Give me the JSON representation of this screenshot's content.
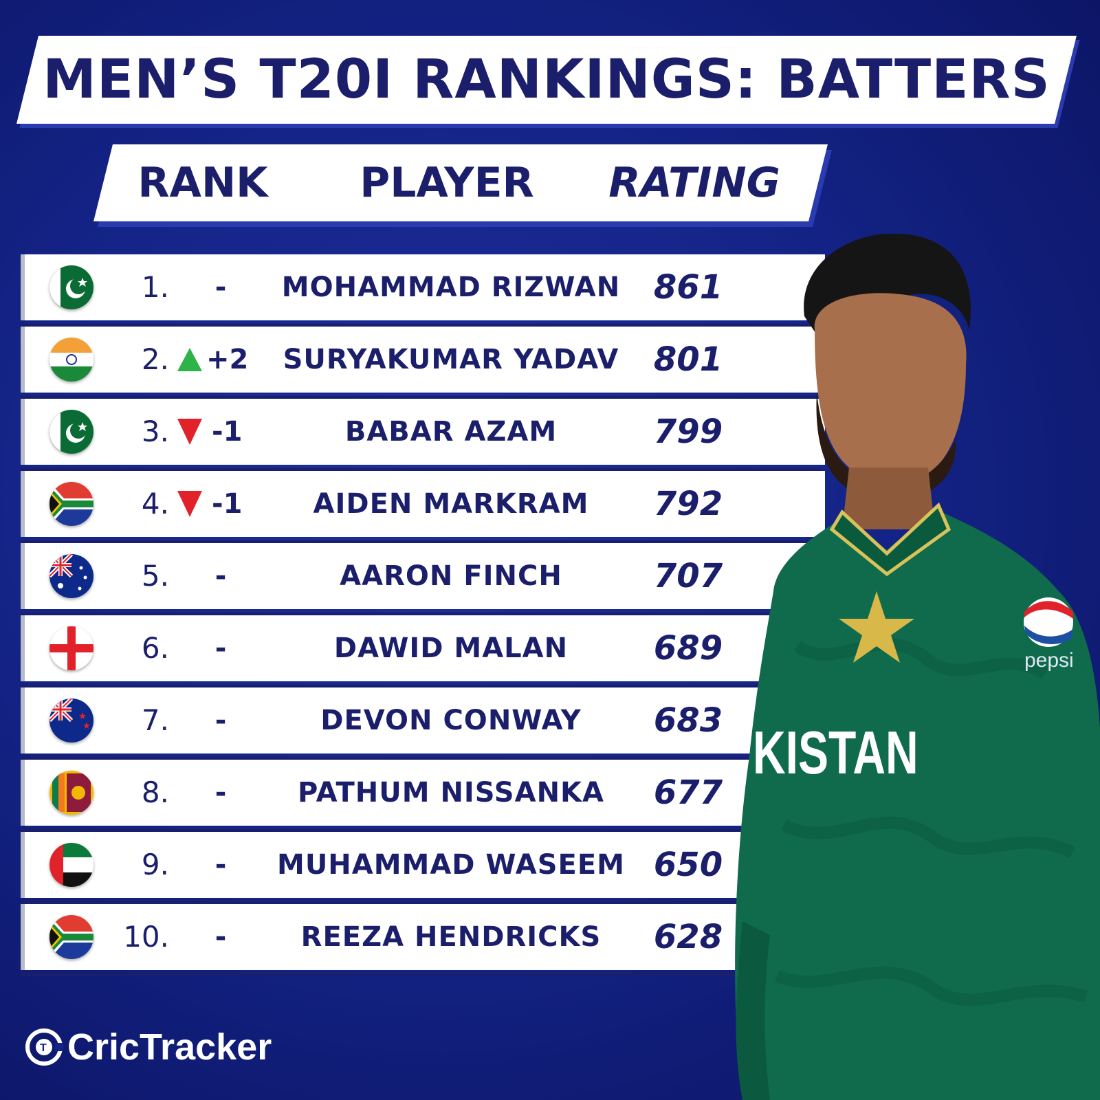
{
  "title": "MEN’S T20I RANKINGS: BATTERS",
  "header": {
    "rank": "RANK",
    "player": "PLAYER",
    "rating": "RATING"
  },
  "rows": [
    {
      "rank": "1.",
      "move": "-",
      "dir": "none",
      "player": "MOHAMMAD RIZWAN",
      "rating": "861",
      "flag": "pakistan-flag-icon"
    },
    {
      "rank": "2.",
      "move": "+2",
      "dir": "up",
      "player": "SURYAKUMAR YADAV",
      "rating": "801",
      "flag": "india-flag-icon"
    },
    {
      "rank": "3.",
      "move": "-1",
      "dir": "down",
      "player": "BABAR AZAM",
      "rating": "799",
      "flag": "pakistan-flag-icon"
    },
    {
      "rank": "4.",
      "move": "-1",
      "dir": "down",
      "player": "AIDEN MARKRAM",
      "rating": "792",
      "flag": "south-africa-flag-icon"
    },
    {
      "rank": "5.",
      "move": "-",
      "dir": "none",
      "player": "AARON FINCH",
      "rating": "707",
      "flag": "australia-flag-icon"
    },
    {
      "rank": "6.",
      "move": "-",
      "dir": "none",
      "player": "DAWID MALAN",
      "rating": "689",
      "flag": "england-flag-icon"
    },
    {
      "rank": "7.",
      "move": "-",
      "dir": "none",
      "player": "DEVON CONWAY",
      "rating": "683",
      "flag": "new-zealand-flag-icon"
    },
    {
      "rank": "8.",
      "move": "-",
      "dir": "none",
      "player": "PATHUM NISSANKA",
      "rating": "677",
      "flag": "sri-lanka-flag-icon"
    },
    {
      "rank": "9.",
      "move": "-",
      "dir": "none",
      "player": "MUHAMMAD WASEEM",
      "rating": "650",
      "flag": "uae-flag-icon"
    },
    {
      "rank": "10.",
      "move": "-",
      "dir": "none",
      "player": "REEZA HENDRICKS",
      "rating": "628",
      "flag": "south-africa-flag-icon"
    }
  ],
  "jersey": {
    "text": "KISTAN",
    "sponsor": "pepsi"
  },
  "brand": "CricTracker",
  "colors": {
    "navy": "#1b1f6b",
    "up": "#2db34a",
    "down": "#e2222b",
    "jersey": "#0f6b4c"
  }
}
